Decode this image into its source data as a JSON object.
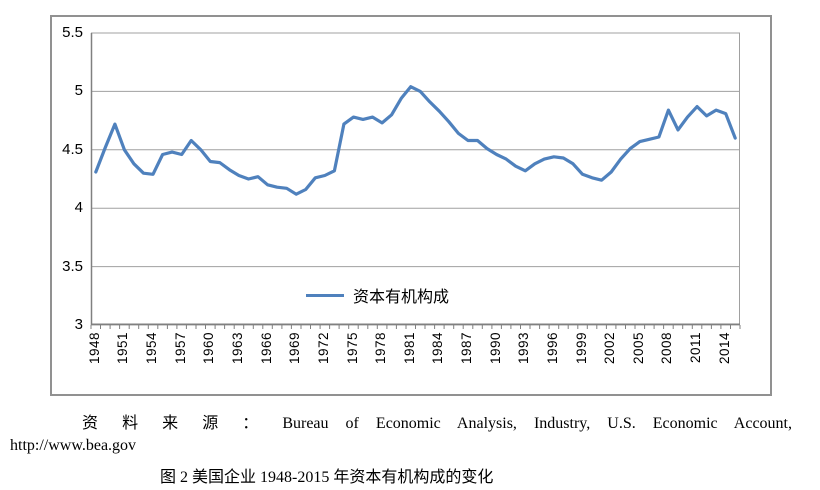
{
  "chart_data": {
    "type": "line",
    "legend": "资本有机构成",
    "series_name": "资本有机构成",
    "x": [
      1948,
      1949,
      1950,
      1951,
      1952,
      1953,
      1954,
      1955,
      1956,
      1957,
      1958,
      1959,
      1960,
      1961,
      1962,
      1963,
      1964,
      1965,
      1966,
      1967,
      1968,
      1969,
      1970,
      1971,
      1972,
      1973,
      1974,
      1975,
      1976,
      1977,
      1978,
      1979,
      1980,
      1981,
      1982,
      1983,
      1984,
      1985,
      1986,
      1987,
      1988,
      1989,
      1990,
      1991,
      1992,
      1993,
      1994,
      1995,
      1996,
      1997,
      1998,
      1999,
      2000,
      2001,
      2002,
      2003,
      2004,
      2005,
      2006,
      2007,
      2008,
      2009,
      2010,
      2011,
      2012,
      2013,
      2014,
      2015
    ],
    "values": [
      4.31,
      4.52,
      4.72,
      4.5,
      4.38,
      4.3,
      4.29,
      4.46,
      4.48,
      4.46,
      4.58,
      4.5,
      4.4,
      4.39,
      4.33,
      4.28,
      4.25,
      4.27,
      4.2,
      4.18,
      4.17,
      4.12,
      4.16,
      4.26,
      4.28,
      4.32,
      4.72,
      4.78,
      4.76,
      4.78,
      4.73,
      4.8,
      4.94,
      5.04,
      5.0,
      4.91,
      4.83,
      4.74,
      4.64,
      4.58,
      4.58,
      4.51,
      4.46,
      4.42,
      4.36,
      4.32,
      4.38,
      4.42,
      4.44,
      4.43,
      4.38,
      4.29,
      4.26,
      4.24,
      4.31,
      4.42,
      4.51,
      4.57,
      4.59,
      4.61,
      4.84,
      4.67,
      4.78,
      4.87,
      4.79,
      4.84,
      4.81,
      4.6
    ],
    "ylim": [
      3,
      5.5
    ],
    "ytick_values": [
      5.5,
      5,
      4.5,
      4,
      3.5,
      3
    ],
    "ytick_labels": [
      "5.5",
      "5",
      "4.5",
      "4",
      "3.5",
      "3"
    ],
    "xtick_years": [
      1948,
      1951,
      1954,
      1957,
      1960,
      1963,
      1966,
      1969,
      1972,
      1975,
      1978,
      1981,
      1984,
      1987,
      1990,
      1993,
      1996,
      1999,
      2002,
      2005,
      2008,
      2011,
      2014
    ],
    "grid": true,
    "legend_position": "bottom-center-inside",
    "colors": {
      "line": "#4F81BD",
      "grid": "#A0A0A0",
      "axis": "#808080",
      "frame_border": "#919191"
    }
  },
  "caption": {
    "source_line": "资 料 来 源 ： Bureau of Economic Analysis, Industry, U.S. Economic Account,",
    "url_line": "http://www.bea.gov",
    "figure_title": "图 2 美国企业 1948-2015 年资本有机构成的变化"
  }
}
